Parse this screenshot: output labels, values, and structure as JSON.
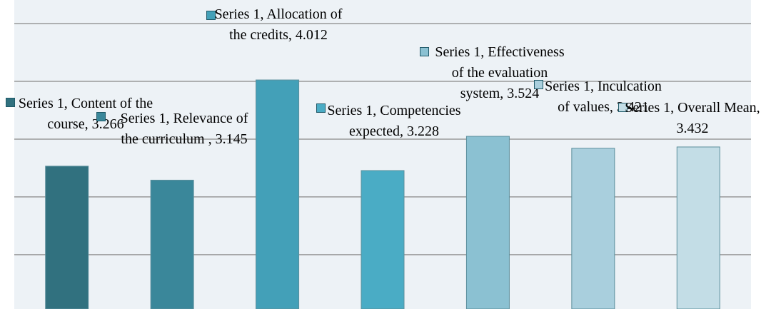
{
  "chart_data": {
    "type": "bar",
    "series_name": "Series 1",
    "categories": [
      "Content of the course",
      "Relevance of the curriculum ",
      "Allocation of the credits",
      "Competencies expected",
      "Effectiveness of the evaluation system",
      "Inculcation of values",
      "Overall Mean"
    ],
    "values": [
      3.266,
      3.145,
      4.012,
      3.228,
      3.524,
      3.421,
      3.432
    ],
    "value_labels": [
      "Series 1, Content of the course, 3.266",
      "Series 1, Relevance of the curriculum , 3.145",
      "Series 1, Allocation of the credits, 4.012",
      "Series 1, Competencies expected, 3.228",
      "Series 1, Effectiveness of the evaluation system, 3.524",
      "Series 1, Inculcation of values, 3.421",
      "Series 1, Overall Mean, 3.432"
    ],
    "colors": [
      "#31717f",
      "#3a879a",
      "#43a0b8",
      "#4aacc5",
      "#8bc1d2",
      "#a9cfdd",
      "#c3dde6"
    ],
    "ylim": [
      2.03,
      4.5
    ],
    "yticks": [
      2.5,
      3,
      3.5,
      4,
      4.5
    ],
    "grid": true
  }
}
